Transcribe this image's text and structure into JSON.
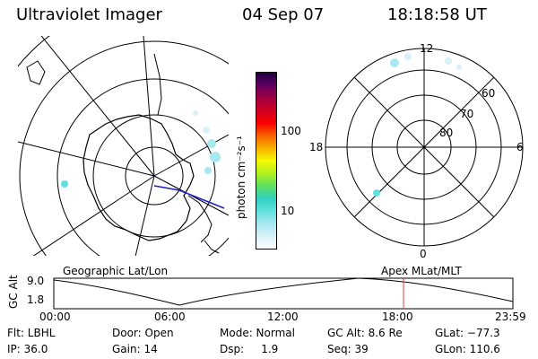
{
  "header": {
    "instrument": "Ultraviolet Imager",
    "date": "04 Sep 07",
    "time": "18:18:58 UT"
  },
  "colorbar": {
    "unit_label": "photon cm⁻²s⁻¹",
    "tick_100": "100",
    "tick_10": "10",
    "scale": "log",
    "colors": [
      "#ffffff",
      "#d8f0f8",
      "#a8e8f0",
      "#60e0e0",
      "#30d0c0",
      "#60e060",
      "#b0f020",
      "#f8f800",
      "#f8b000",
      "#f86000",
      "#f80000",
      "#d00020",
      "#a00040",
      "#600060",
      "#200040"
    ]
  },
  "left_map": {
    "label": "Geographic Lat/Lon"
  },
  "right_map": {
    "label": "Apex  MLat/MLT",
    "mlt_labels": {
      "top": "12",
      "left": "18",
      "right": "6",
      "bottom": "0"
    },
    "mlat_labels": [
      "60",
      "70",
      "80"
    ]
  },
  "altitude_plot": {
    "axis_label": "GC Alt",
    "y_ticks": [
      "9.0",
      "1.8"
    ],
    "x_ticks": [
      "00:00",
      "06:00",
      "12:00",
      "18:00",
      "23:59"
    ],
    "marker_color": "#e04040"
  },
  "status": {
    "row1": [
      {
        "key": "flt",
        "text": "Flt: LBHL"
      },
      {
        "key": "door",
        "text": "Door: Open"
      },
      {
        "key": "mode",
        "text": "Mode: Normal"
      },
      {
        "key": "gcalt",
        "text": "GC Alt: 8.6 Re"
      },
      {
        "key": "glat",
        "text": "GLat: −77.3"
      }
    ],
    "row2": [
      {
        "key": "ip",
        "text": "IP: 36.0"
      },
      {
        "key": "gain",
        "text": "Gain: 14"
      },
      {
        "key": "dsp",
        "text": "Dsp:     1.9"
      },
      {
        "key": "seq",
        "text": "Seq: 39"
      },
      {
        "key": "glon",
        "text": "GLon: 110.6"
      }
    ]
  }
}
